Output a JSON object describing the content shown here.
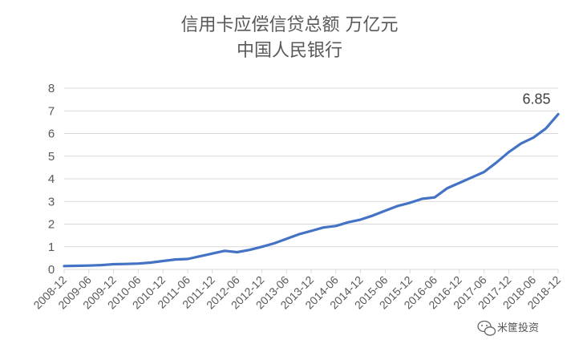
{
  "chart_data": {
    "type": "line",
    "title": "信用卡应偿信贷总额 万亿元",
    "subtitle": "中国人民银行",
    "xlabel": "",
    "ylabel": "",
    "ylim": [
      0,
      8
    ],
    "yticks": [
      0,
      1,
      2,
      3,
      4,
      5,
      6,
      7,
      8
    ],
    "grid": true,
    "legend": "none",
    "x": [
      "2008-12",
      "2009-03",
      "2009-06",
      "2009-09",
      "2009-12",
      "2010-03",
      "2010-06",
      "2010-09",
      "2010-12",
      "2011-03",
      "2011-06",
      "2011-09",
      "2011-12",
      "2012-03",
      "2012-06",
      "2012-09",
      "2012-12",
      "2013-03",
      "2013-06",
      "2013-09",
      "2013-12",
      "2014-03",
      "2014-06",
      "2014-09",
      "2014-12",
      "2015-03",
      "2015-06",
      "2015-09",
      "2015-12",
      "2016-03",
      "2016-06",
      "2016-09",
      "2016-12",
      "2017-03",
      "2017-06",
      "2017-09",
      "2017-12",
      "2018-03",
      "2018-06",
      "2018-09",
      "2018-12"
    ],
    "xticks": [
      "2008-12",
      "2009-06",
      "2009-12",
      "2010-06",
      "2010-12",
      "2011-06",
      "2011-12",
      "2012-06",
      "2012-12",
      "2013-06",
      "2013-12",
      "2014-06",
      "2014-12",
      "2015-06",
      "2015-12",
      "2016-06",
      "2016-12",
      "2017-06",
      "2017-12",
      "2018-06",
      "2018-12"
    ],
    "series": [
      {
        "color": "#4472c4",
        "values": [
          0.15,
          0.16,
          0.17,
          0.19,
          0.23,
          0.24,
          0.26,
          0.3,
          0.37,
          0.44,
          0.46,
          0.58,
          0.7,
          0.82,
          0.76,
          0.86,
          1.0,
          1.15,
          1.35,
          1.55,
          1.7,
          1.85,
          1.92,
          2.08,
          2.2,
          2.38,
          2.59,
          2.8,
          2.94,
          3.12,
          3.18,
          3.58,
          3.82,
          4.06,
          4.3,
          4.72,
          5.18,
          5.56,
          5.82,
          6.22,
          6.85
        ]
      }
    ],
    "annotations": [
      {
        "text": "6.85",
        "x": "2018-12",
        "y": 6.85
      }
    ]
  },
  "watermark": {
    "text": "米筐投资",
    "icon": "wechat-icon"
  },
  "colors": {
    "line": "#4472c4",
    "grid": "#d9d9d9",
    "text": "#595959"
  }
}
